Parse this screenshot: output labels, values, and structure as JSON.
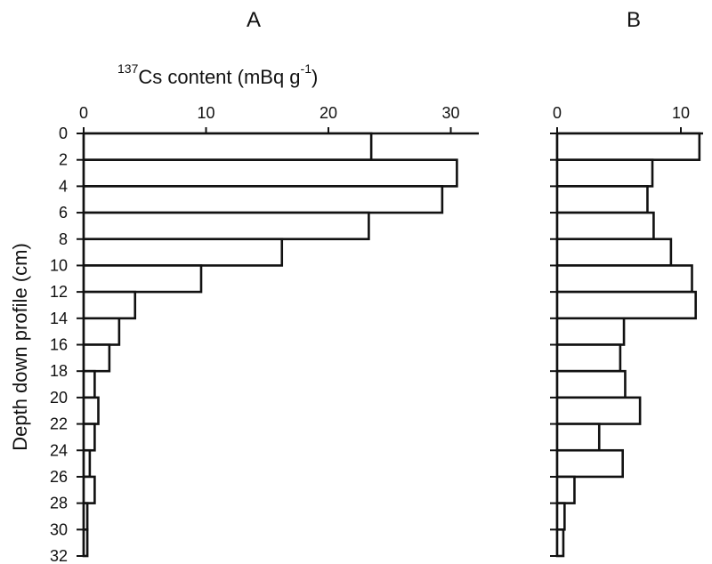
{
  "chart_data": [
    {
      "type": "bar",
      "orientation": "horizontal",
      "title": "A",
      "xlabel": {
        "superscript_prefix": "137",
        "text": "Cs content (mBq g",
        "superscript_exp": "-1",
        "close": ")"
      },
      "ylabel": "Depth down profile (cm)",
      "xlim": [
        0,
        32
      ],
      "xticks": [
        "0",
        "10",
        "20",
        "30"
      ],
      "depth_ticks": [
        "0",
        "2",
        "4",
        "6",
        "8",
        "10",
        "12",
        "14",
        "16",
        "18",
        "20",
        "22",
        "24",
        "26",
        "28",
        "30",
        "32"
      ],
      "depth_intervals": [
        [
          0,
          2
        ],
        [
          2,
          4
        ],
        [
          4,
          6
        ],
        [
          6,
          8
        ],
        [
          8,
          10
        ],
        [
          10,
          12
        ],
        [
          12,
          14
        ],
        [
          14,
          16
        ],
        [
          16,
          18
        ],
        [
          18,
          20
        ],
        [
          20,
          22
        ],
        [
          22,
          24
        ],
        [
          24,
          26
        ],
        [
          26,
          28
        ],
        [
          28,
          30
        ],
        [
          30,
          32
        ]
      ],
      "values": [
        23.5,
        30.5,
        29.3,
        23.3,
        16.2,
        9.6,
        4.2,
        2.9,
        2.1,
        0.9,
        1.2,
        0.9,
        0.5,
        0.9,
        0.3,
        0.3
      ]
    },
    {
      "type": "bar",
      "orientation": "horizontal",
      "title": "B",
      "xlim": [
        0,
        12
      ],
      "xticks": [
        "0",
        "10"
      ],
      "depth_intervals": [
        [
          0,
          2
        ],
        [
          2,
          4
        ],
        [
          4,
          6
        ],
        [
          6,
          8
        ],
        [
          8,
          10
        ],
        [
          10,
          12
        ],
        [
          12,
          14
        ],
        [
          14,
          16
        ],
        [
          16,
          18
        ],
        [
          18,
          20
        ],
        [
          20,
          22
        ],
        [
          22,
          24
        ],
        [
          24,
          26
        ],
        [
          26,
          28
        ],
        [
          28,
          30
        ],
        [
          30,
          32
        ]
      ],
      "values": [
        11.5,
        7.7,
        7.3,
        7.8,
        9.2,
        10.9,
        11.2,
        5.4,
        5.1,
        5.5,
        6.7,
        3.4,
        5.3,
        1.4,
        0.6,
        0.5
      ]
    }
  ]
}
